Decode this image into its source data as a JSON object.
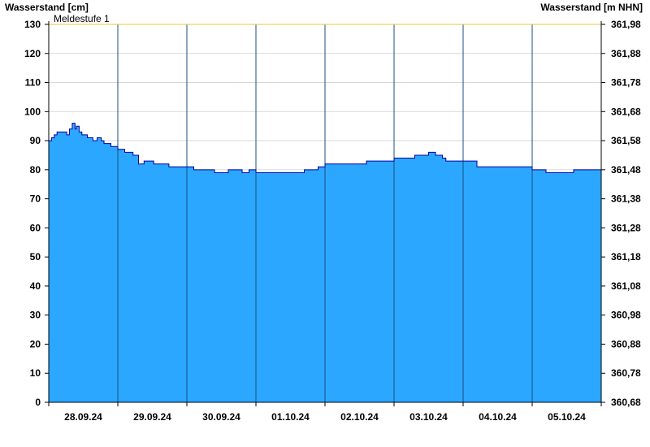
{
  "chart_data": {
    "type": "area",
    "ylabel_left": "Wasserstand [cm]",
    "ylabel_right": "Wasserstand [m NHN]",
    "x_tick_labels": [
      "28.09.24",
      "29.09.24",
      "30.09.24",
      "01.10.24",
      "02.10.24",
      "03.10.24",
      "04.10.24",
      "05.10.24"
    ],
    "y_left_ticks": [
      "0",
      "10",
      "20",
      "30",
      "40",
      "50",
      "60",
      "70",
      "80",
      "90",
      "100",
      "110",
      "120",
      "130"
    ],
    "y_right_ticks": [
      "360,68",
      "360,78",
      "360,88",
      "360,98",
      "361,08",
      "361,18",
      "361,28",
      "361,38",
      "361,48",
      "361,58",
      "361,68",
      "361,78",
      "361,88",
      "361,98"
    ],
    "ylim": [
      0,
      130
    ],
    "xlim_days": [
      0,
      8
    ],
    "threshold": {
      "label": "Meldestufe 1",
      "value": 130,
      "color": "#f0c040"
    },
    "fill_color": "#2ba7ff",
    "line_color": "#0000a0",
    "grid": "horizontal",
    "series": [
      {
        "x": [
          0,
          0.04,
          0.08,
          0.12,
          0.18,
          0.22,
          0.26,
          0.3,
          0.34,
          0.38,
          0.4,
          0.44,
          0.48,
          0.52,
          0.56,
          0.6,
          0.64,
          0.7,
          0.76,
          0.8,
          0.84,
          0.9,
          0.96,
          1.0,
          1.04,
          1.1,
          1.16,
          1.22,
          1.3,
          1.38,
          1.46,
          1.52,
          1.58,
          1.66,
          1.7,
          1.74,
          1.8,
          1.86,
          1.92,
          1.96,
          2.0,
          2.1,
          2.2,
          2.3,
          2.4,
          2.5,
          2.6,
          2.7,
          2.8,
          2.9,
          3.0,
          3.1,
          3.2,
          3.3,
          3.4,
          3.5,
          3.6,
          3.7,
          3.8,
          3.9,
          4.0,
          4.2,
          4.4,
          4.6,
          4.8,
          5.0,
          5.2,
          5.3,
          5.4,
          5.5,
          5.6,
          5.7,
          5.75,
          5.8,
          5.9,
          6.0,
          6.2,
          6.4,
          6.6,
          6.8,
          7.0,
          7.2,
          7.4,
          7.6,
          7.8,
          8.0
        ],
        "values": [
          90,
          91,
          92,
          93,
          93,
          93,
          92,
          94,
          96,
          94,
          95,
          93,
          92,
          92,
          91,
          91,
          90,
          91,
          90,
          89,
          89,
          88,
          88,
          87,
          87,
          86,
          86,
          85,
          82,
          83,
          83,
          82,
          82,
          82,
          82,
          81,
          81,
          81,
          81,
          81,
          81,
          80,
          80,
          80,
          79,
          79,
          80,
          80,
          79,
          80,
          79,
          79,
          79,
          79,
          79,
          79,
          79,
          80,
          80,
          81,
          82,
          82,
          82,
          83,
          83,
          84,
          84,
          85,
          85,
          86,
          85,
          84,
          83,
          83,
          83,
          83,
          81,
          81,
          81,
          81,
          80,
          79,
          79,
          80,
          80,
          80
        ]
      }
    ]
  }
}
